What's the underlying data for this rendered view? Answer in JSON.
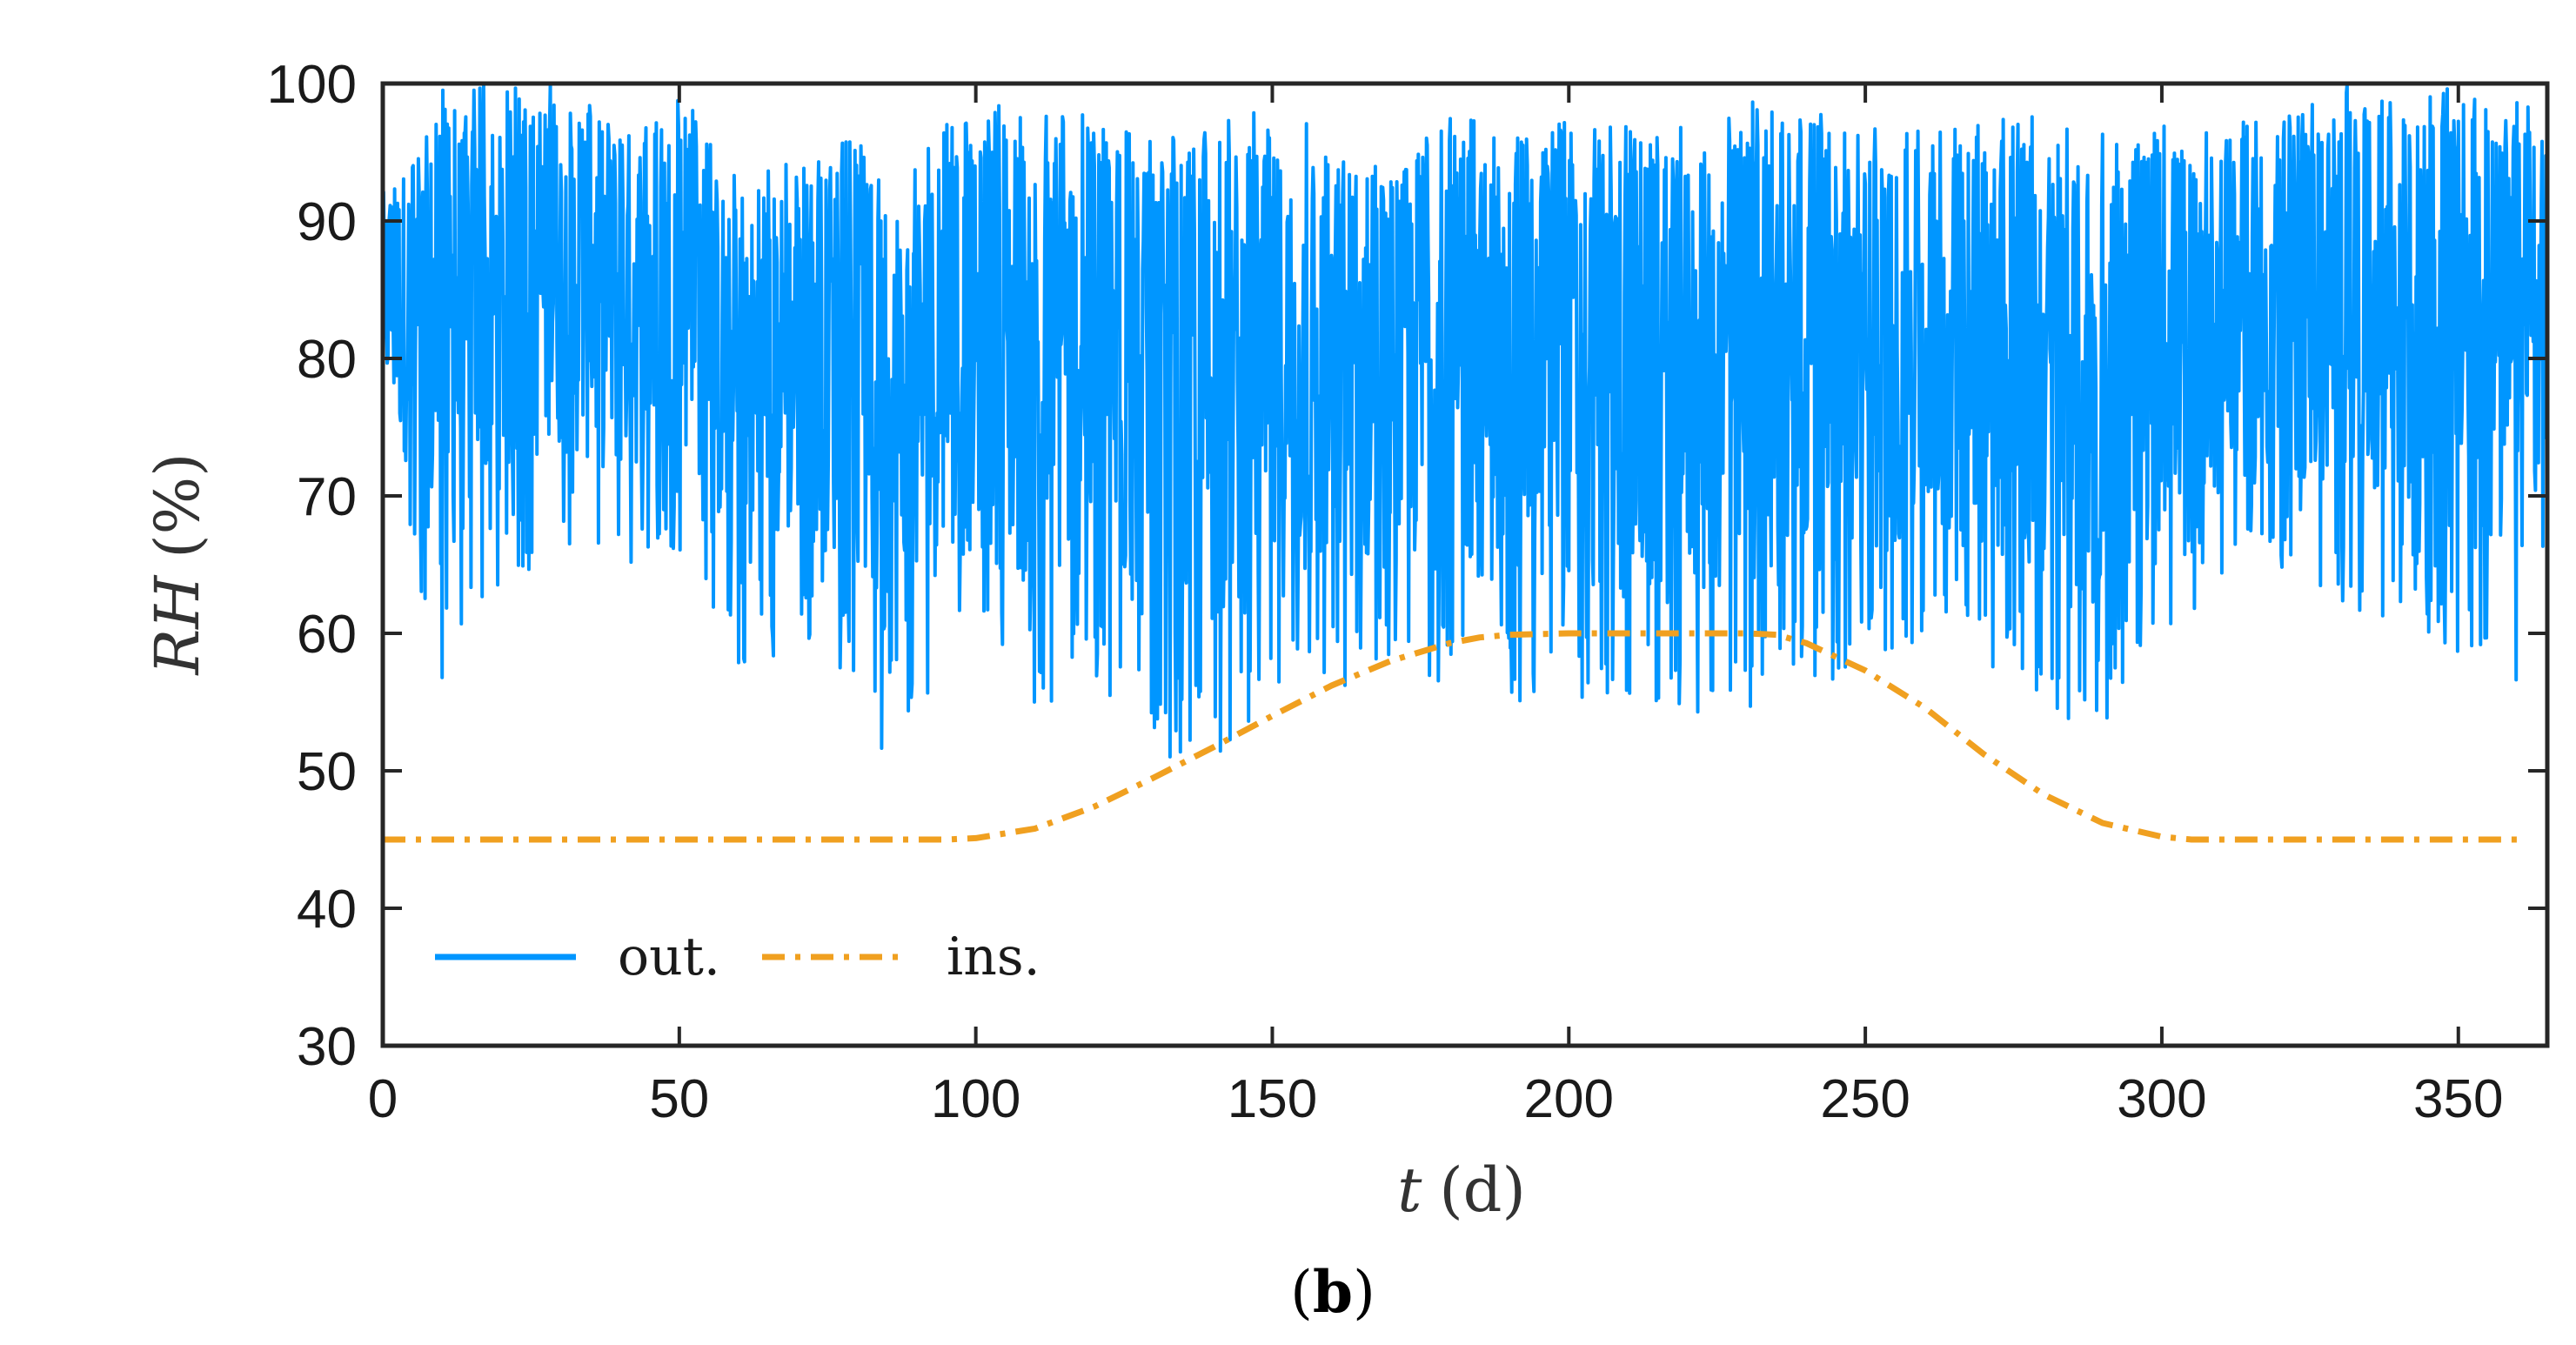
{
  "chart_data": {
    "type": "line",
    "xlabel": {
      "var": "t",
      "unit": "(d)"
    },
    "ylabel": {
      "var": "RH",
      "unit": "(%)"
    },
    "panel_label": {
      "open": "(",
      "letter": "b",
      "close": ")"
    },
    "xlim": [
      0,
      365
    ],
    "ylim": [
      30,
      100
    ],
    "xticks": [
      0,
      50,
      100,
      150,
      200,
      250,
      300,
      350
    ],
    "yticks": [
      30,
      40,
      50,
      60,
      70,
      80,
      90,
      100
    ],
    "grid": false,
    "legend_position": "bottom-left",
    "series": [
      {
        "name": "out.",
        "color": "#0096FF",
        "style": "solid",
        "sampling": "3-hourly (8 samples/day), 0 to 365 d",
        "daily_envelope": [
          {
            "t": 0,
            "min": 72,
            "max": 92
          },
          {
            "t": 10,
            "min": 56,
            "max": 100
          },
          {
            "t": 20,
            "min": 63,
            "max": 100
          },
          {
            "t": 30,
            "min": 66,
            "max": 100
          },
          {
            "t": 40,
            "min": 64,
            "max": 98
          },
          {
            "t": 50,
            "min": 66,
            "max": 100
          },
          {
            "t": 55,
            "min": 63,
            "max": 96
          },
          {
            "t": 60,
            "min": 54,
            "max": 93
          },
          {
            "t": 70,
            "min": 60,
            "max": 95
          },
          {
            "t": 80,
            "min": 56,
            "max": 96
          },
          {
            "t": 86,
            "min": 48,
            "max": 92
          },
          {
            "t": 90,
            "min": 55,
            "max": 96
          },
          {
            "t": 100,
            "min": 58,
            "max": 98
          },
          {
            "t": 110,
            "min": 54,
            "max": 99
          },
          {
            "t": 120,
            "min": 56,
            "max": 98
          },
          {
            "t": 130,
            "min": 51,
            "max": 96
          },
          {
            "t": 140,
            "min": 51,
            "max": 99
          },
          {
            "t": 150,
            "min": 54,
            "max": 98
          },
          {
            "t": 160,
            "min": 55,
            "max": 97
          },
          {
            "t": 170,
            "min": 57,
            "max": 96
          },
          {
            "t": 180,
            "min": 56,
            "max": 99
          },
          {
            "t": 190,
            "min": 55,
            "max": 96
          },
          {
            "t": 200,
            "min": 55,
            "max": 98
          },
          {
            "t": 210,
            "min": 53,
            "max": 97
          },
          {
            "t": 220,
            "min": 54,
            "max": 97
          },
          {
            "t": 230,
            "min": 54,
            "max": 99
          },
          {
            "t": 240,
            "min": 56,
            "max": 98
          },
          {
            "t": 250,
            "min": 57,
            "max": 97
          },
          {
            "t": 260,
            "min": 59,
            "max": 97
          },
          {
            "t": 270,
            "min": 58,
            "max": 97
          },
          {
            "t": 280,
            "min": 55,
            "max": 99
          },
          {
            "t": 288,
            "min": 52,
            "max": 96
          },
          {
            "t": 300,
            "min": 60,
            "max": 98
          },
          {
            "t": 310,
            "min": 63,
            "max": 97
          },
          {
            "t": 320,
            "min": 64,
            "max": 98
          },
          {
            "t": 330,
            "min": 62,
            "max": 100
          },
          {
            "t": 340,
            "min": 61,
            "max": 100
          },
          {
            "t": 350,
            "min": 58,
            "max": 100
          },
          {
            "t": 360,
            "min": 56,
            "max": 99
          },
          {
            "t": 365,
            "min": 58,
            "max": 97
          }
        ]
      },
      {
        "name": "ins.",
        "color": "#F0A020",
        "style": "dash-dot",
        "x": [
          0,
          50,
          95,
          100,
          110,
          120,
          130,
          140,
          150,
          160,
          170,
          180,
          185,
          190,
          200,
          210,
          220,
          230,
          235,
          240,
          250,
          260,
          270,
          280,
          290,
          300,
          305,
          310,
          330,
          350,
          360
        ],
        "y": [
          45,
          45,
          45,
          45.1,
          45.8,
          47.4,
          49.5,
          51.7,
          54.0,
          56.2,
          58.0,
          59.3,
          59.7,
          59.9,
          60,
          60,
          60,
          60,
          59.9,
          59.3,
          57.3,
          54.6,
          51.2,
          48.3,
          46.2,
          45.2,
          45.0,
          45,
          45,
          45,
          45
        ]
      }
    ]
  }
}
